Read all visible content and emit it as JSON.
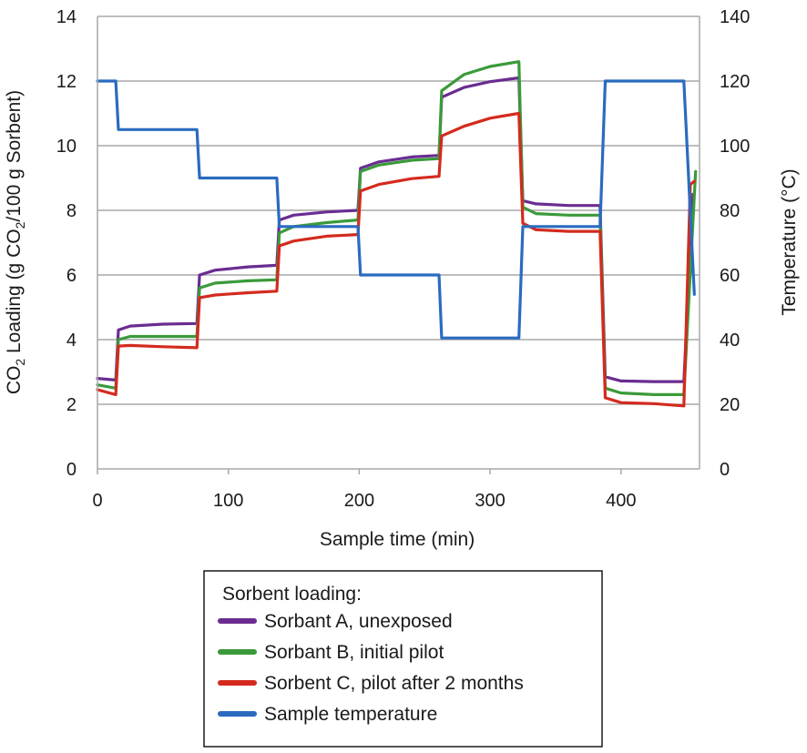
{
  "chart_data": {
    "type": "line",
    "xlabel": "Sample time (min)",
    "ylabel_left": {
      "prefix": "CO",
      "sub1": "2",
      "mid": " Loading (g CO",
      "sub2": "2",
      "suffix": "/100 g Sorbent)"
    },
    "ylabel_right": "Temperature (°C)",
    "xlim": [
      0,
      460
    ],
    "ylim_left": [
      0,
      14
    ],
    "ylim_right": [
      0,
      140
    ],
    "xticks": [
      "0",
      "100",
      "200",
      "300",
      "400"
    ],
    "yticks_left": [
      "0",
      "2",
      "4",
      "6",
      "8",
      "10",
      "12",
      "14"
    ],
    "yticks_right": [
      "0",
      "20",
      "40",
      "60",
      "80",
      "100",
      "120",
      "140"
    ],
    "grid": "horizontal",
    "legend": {
      "title": "Sorbent loading:",
      "position": "bottom-center"
    },
    "series": [
      {
        "name": "Sorbant A, unexposed",
        "axis": "left",
        "color": "#6a2c91",
        "points": [
          [
            0,
            2.8
          ],
          [
            14,
            2.75
          ],
          [
            16,
            4.3
          ],
          [
            25,
            4.42
          ],
          [
            50,
            4.48
          ],
          [
            76,
            4.5
          ],
          [
            78,
            6.0
          ],
          [
            90,
            6.15
          ],
          [
            115,
            6.25
          ],
          [
            137,
            6.3
          ],
          [
            139,
            7.7
          ],
          [
            150,
            7.85
          ],
          [
            175,
            7.95
          ],
          [
            199,
            8.0
          ],
          [
            201,
            9.3
          ],
          [
            215,
            9.5
          ],
          [
            240,
            9.65
          ],
          [
            261,
            9.7
          ],
          [
            263,
            11.5
          ],
          [
            280,
            11.8
          ],
          [
            300,
            11.98
          ],
          [
            322,
            12.1
          ],
          [
            325,
            8.3
          ],
          [
            335,
            8.2
          ],
          [
            360,
            8.15
          ],
          [
            384,
            8.15
          ],
          [
            388,
            2.85
          ],
          [
            400,
            2.72
          ],
          [
            425,
            2.7
          ],
          [
            448,
            2.7
          ],
          [
            455,
            8.5
          ]
        ]
      },
      {
        "name": "Sorbant B, initial pilot",
        "axis": "left",
        "color": "#3a9a3a",
        "points": [
          [
            0,
            2.6
          ],
          [
            14,
            2.5
          ],
          [
            16,
            4.0
          ],
          [
            25,
            4.1
          ],
          [
            50,
            4.1
          ],
          [
            76,
            4.1
          ],
          [
            78,
            5.6
          ],
          [
            90,
            5.75
          ],
          [
            115,
            5.82
          ],
          [
            137,
            5.85
          ],
          [
            139,
            7.3
          ],
          [
            150,
            7.5
          ],
          [
            175,
            7.62
          ],
          [
            199,
            7.7
          ],
          [
            201,
            9.2
          ],
          [
            215,
            9.4
          ],
          [
            240,
            9.55
          ],
          [
            261,
            9.6
          ],
          [
            263,
            11.7
          ],
          [
            280,
            12.2
          ],
          [
            300,
            12.45
          ],
          [
            322,
            12.6
          ],
          [
            325,
            8.1
          ],
          [
            335,
            7.9
          ],
          [
            360,
            7.85
          ],
          [
            384,
            7.85
          ],
          [
            388,
            2.5
          ],
          [
            400,
            2.35
          ],
          [
            425,
            2.3
          ],
          [
            448,
            2.3
          ],
          [
            457,
            9.2
          ]
        ]
      },
      {
        "name": "Sorbent C, pilot after 2 months",
        "axis": "left",
        "color": "#d42a1e",
        "points": [
          [
            0,
            2.45
          ],
          [
            14,
            2.3
          ],
          [
            16,
            3.8
          ],
          [
            25,
            3.82
          ],
          [
            50,
            3.78
          ],
          [
            76,
            3.75
          ],
          [
            78,
            5.3
          ],
          [
            90,
            5.38
          ],
          [
            115,
            5.45
          ],
          [
            137,
            5.5
          ],
          [
            139,
            6.9
          ],
          [
            150,
            7.05
          ],
          [
            175,
            7.2
          ],
          [
            199,
            7.25
          ],
          [
            201,
            8.6
          ],
          [
            215,
            8.8
          ],
          [
            240,
            8.98
          ],
          [
            261,
            9.05
          ],
          [
            263,
            10.3
          ],
          [
            280,
            10.6
          ],
          [
            300,
            10.85
          ],
          [
            322,
            11.0
          ],
          [
            325,
            7.6
          ],
          [
            335,
            7.4
          ],
          [
            360,
            7.35
          ],
          [
            384,
            7.35
          ],
          [
            388,
            2.2
          ],
          [
            400,
            2.05
          ],
          [
            425,
            2.02
          ],
          [
            448,
            1.95
          ],
          [
            453,
            8.8
          ],
          [
            456,
            8.9
          ]
        ]
      },
      {
        "name": "Sample temperature",
        "axis": "right",
        "color": "#2a6bc0",
        "points": [
          [
            0,
            120
          ],
          [
            14,
            120
          ],
          [
            16,
            105
          ],
          [
            76,
            105
          ],
          [
            78,
            90
          ],
          [
            137,
            90
          ],
          [
            139,
            75
          ],
          [
            199,
            75
          ],
          [
            201,
            60
          ],
          [
            261,
            60
          ],
          [
            263,
            40.5
          ],
          [
            322,
            40.5
          ],
          [
            325,
            75
          ],
          [
            384,
            75
          ],
          [
            388,
            120
          ],
          [
            448,
            120
          ],
          [
            456,
            54
          ]
        ]
      }
    ]
  }
}
